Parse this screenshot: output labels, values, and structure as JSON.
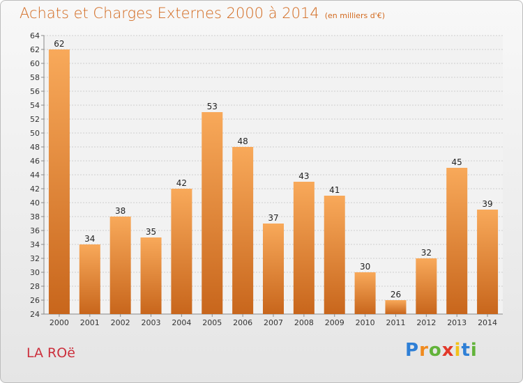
{
  "title": {
    "main": "Achats et Charges Externes 2000 à 2014",
    "unit": "(en milliers d'€)"
  },
  "town": "LA ROë",
  "logo": {
    "letters": [
      "P",
      "r",
      "o",
      "x",
      "i",
      "t",
      "i"
    ],
    "colors": [
      "#2e7fd6",
      "#f08a1e",
      "#62b33a",
      "#e2382a",
      "#f2c21b",
      "#2e7fd6",
      "#62b33a"
    ]
  },
  "colors": {
    "bar_top": "#f8a95a",
    "bar_bottom": "#c8661c",
    "grid": "#cfcfcf",
    "axis": "#888888"
  },
  "chart_data": {
    "type": "bar",
    "categories": [
      "2000",
      "2001",
      "2002",
      "2003",
      "2004",
      "2005",
      "2006",
      "2007",
      "2008",
      "2009",
      "2010",
      "2011",
      "2012",
      "2013",
      "2014"
    ],
    "values": [
      62,
      34,
      38,
      35,
      42,
      53,
      48,
      37,
      43,
      41,
      30,
      26,
      32,
      45,
      39
    ],
    "title": "Achats et Charges Externes 2000 à 2014",
    "ylim": [
      24,
      64
    ],
    "ytick_step": 2,
    "grid": true
  }
}
